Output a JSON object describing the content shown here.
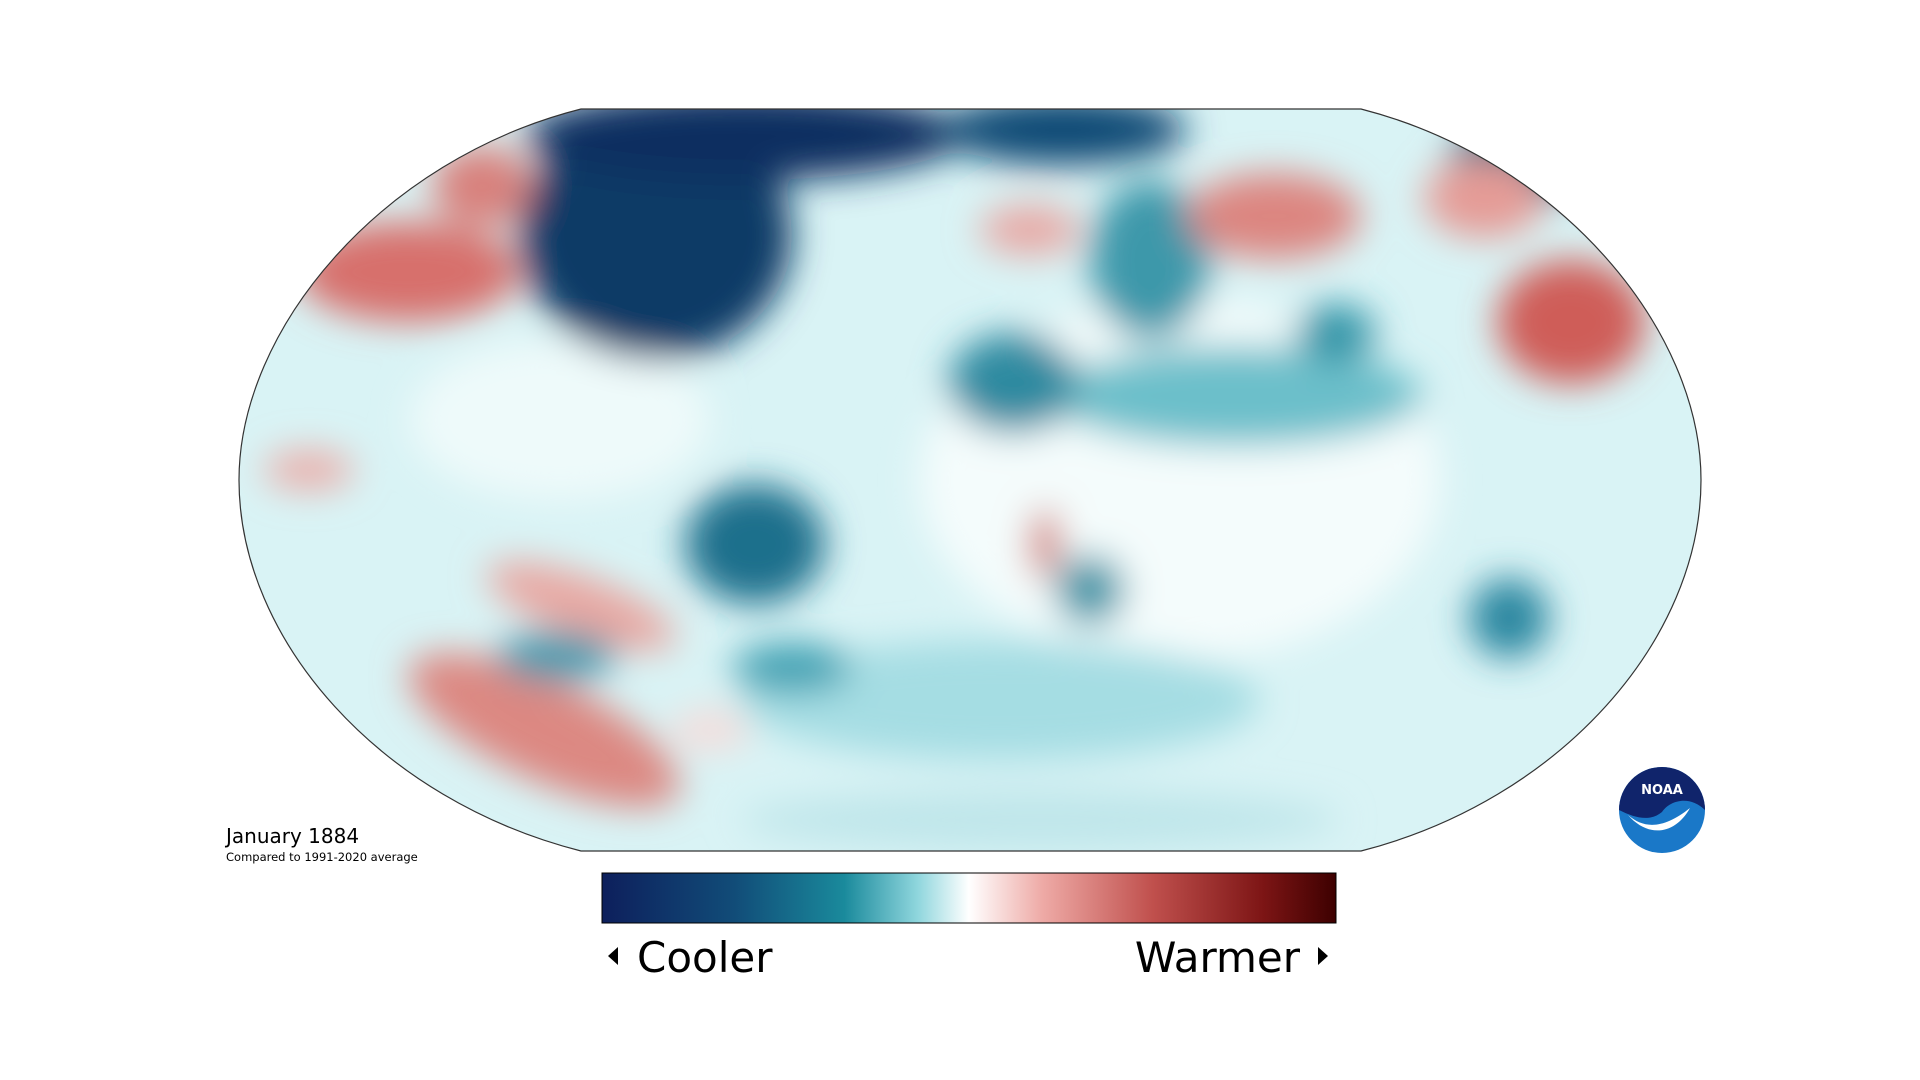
{
  "map": {
    "date": "January 1884",
    "subtitle": "Compared to 1991-2020 average"
  },
  "legend": {
    "low": "Cooler",
    "high": "Warmer"
  },
  "logo": "NOAA"
}
